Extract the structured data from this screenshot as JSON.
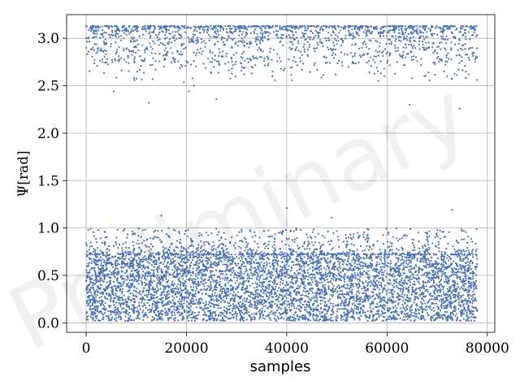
{
  "chart_data": {
    "type": "scatter",
    "title": "",
    "xlabel": "samples",
    "ylabel": "Ψ[rad]",
    "xlim": [
      -3900,
      81500
    ],
    "ylim": [
      -0.1,
      3.25
    ],
    "xticks": [
      0,
      20000,
      40000,
      60000,
      80000
    ],
    "yticks": [
      0.0,
      0.5,
      1.0,
      1.5,
      2.0,
      2.5,
      3.0
    ],
    "xtick_labels": [
      "0",
      "20000",
      "40000",
      "60000",
      "80000"
    ],
    "ytick_labels": [
      "0.0",
      "0.5",
      "1.0",
      "1.5",
      "2.0",
      "2.5",
      "3.0"
    ],
    "grid": true,
    "watermark": "Preliminary",
    "series": [
      {
        "color": "#4c72b0",
        "sample_range": [
          0,
          78000
        ],
        "clusters": [
          {
            "y_min": 0.02,
            "y_max": 0.72,
            "note": "dense lower band"
          },
          {
            "y_min": 2.75,
            "y_max": 3.13,
            "note": "upper band"
          }
        ],
        "outliers": [
          [
            5500,
            2.44
          ],
          [
            12500,
            2.32
          ],
          [
            19500,
            2.54
          ],
          [
            20500,
            2.44
          ],
          [
            21500,
            2.5
          ],
          [
            26000,
            2.36
          ],
          [
            64500,
            2.3
          ],
          [
            74500,
            2.26
          ],
          [
            15000,
            1.13
          ],
          [
            40000,
            1.21
          ],
          [
            49000,
            1.11
          ],
          [
            73000,
            1.19
          ],
          [
            65000,
            2.58
          ],
          [
            72000,
            2.6
          ],
          [
            8000,
            2.75
          ],
          [
            33000,
            2.7
          ]
        ]
      }
    ]
  }
}
